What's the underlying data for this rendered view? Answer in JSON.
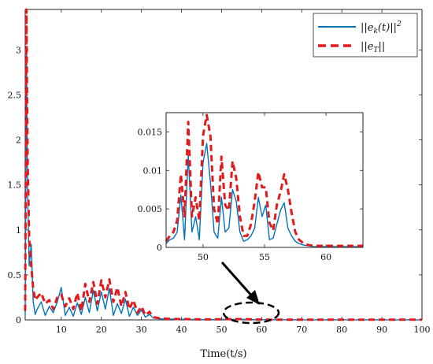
{
  "chart_data": [
    {
      "type": "line",
      "xlabel": "Time(t/s)",
      "ylabel": "",
      "xlim": [
        1,
        100
      ],
      "ylim": [
        0,
        3.45
      ],
      "xticks": [
        10,
        20,
        30,
        40,
        50,
        60,
        70,
        80,
        90,
        100
      ],
      "xtick_labels": [
        "10",
        "20",
        "30",
        "40",
        "50",
        "60",
        "70",
        "80",
        "90",
        "100"
      ],
      "yticks": [
        0,
        0.5,
        1,
        1.5,
        2,
        2.5,
        3
      ],
      "ytick_labels": [
        "0",
        "0.5",
        "1",
        "1.5",
        "2",
        "2.5",
        "3"
      ],
      "legend_position": "top-right",
      "series": [
        {
          "name": "||e_k(t)||^2",
          "color": "#0072BD",
          "style": "solid",
          "x": [
            1,
            1.3,
            1.6,
            2,
            2.5,
            3,
            3.5,
            4,
            5,
            6,
            7,
            8,
            9,
            10,
            11,
            12,
            13,
            14,
            15,
            16,
            17,
            18,
            19,
            20,
            21,
            22,
            23,
            24,
            25,
            26,
            27,
            28,
            29,
            30,
            31,
            32,
            33,
            35,
            38,
            42,
            46,
            50,
            55,
            60,
            70,
            80,
            90,
            100
          ],
          "y": [
            0.05,
            3.0,
            1.4,
            0.6,
            0.84,
            0.2,
            0.06,
            0.12,
            0.2,
            0.05,
            0.15,
            0.08,
            0.2,
            0.36,
            0.05,
            0.14,
            0.04,
            0.19,
            0.06,
            0.25,
            0.08,
            0.33,
            0.1,
            0.31,
            0.12,
            0.35,
            0.05,
            0.18,
            0.07,
            0.23,
            0.04,
            0.14,
            0.05,
            0.11,
            0.03,
            0.06,
            0.02,
            0.01,
            0.008,
            0.005,
            0.003,
            0.005,
            0.006,
            0.002,
            0.001,
            0.001,
            0.001,
            0.001
          ]
        },
        {
          "name": "||e_T||",
          "color": "#E31A1C",
          "style": "dashed",
          "x": [
            1,
            1.3,
            1.6,
            2,
            2.5,
            3,
            3.5,
            4,
            5,
            6,
            7,
            8,
            9,
            10,
            11,
            12,
            13,
            14,
            15,
            16,
            17,
            18,
            19,
            20,
            21,
            22,
            23,
            24,
            25,
            26,
            27,
            28,
            29,
            30,
            31,
            32,
            33,
            35,
            38,
            42,
            46,
            50,
            55,
            60,
            70,
            80,
            90,
            100
          ],
          "y": [
            0.1,
            3.45,
            1.8,
            0.9,
            0.6,
            0.35,
            0.22,
            0.25,
            0.3,
            0.18,
            0.22,
            0.12,
            0.25,
            0.28,
            0.15,
            0.24,
            0.12,
            0.3,
            0.1,
            0.4,
            0.2,
            0.42,
            0.18,
            0.44,
            0.25,
            0.45,
            0.2,
            0.36,
            0.15,
            0.31,
            0.12,
            0.22,
            0.08,
            0.15,
            0.05,
            0.09,
            0.03,
            0.015,
            0.01,
            0.008,
            0.005,
            0.007,
            0.009,
            0.003,
            0.002,
            0.002,
            0.002,
            0.002
          ]
        }
      ]
    },
    {
      "type": "line",
      "inset": true,
      "xlim": [
        47,
        63
      ],
      "ylim": [
        0,
        0.0175
      ],
      "xticks": [
        50,
        55,
        60
      ],
      "xtick_labels": [
        "50",
        "55",
        "60"
      ],
      "yticks": [
        0,
        0.005,
        0.01,
        0.015
      ],
      "ytick_labels": [
        "0",
        "0.005",
        "0.01",
        "0.015"
      ],
      "series": [
        {
          "name": "||e_k(t)||^2",
          "color": "#0072BD",
          "style": "solid",
          "x": [
            47,
            47.3,
            47.6,
            47.9,
            48.2,
            48.5,
            48.8,
            49.1,
            49.4,
            49.7,
            50.0,
            50.3,
            50.6,
            50.9,
            51.2,
            51.5,
            51.8,
            52.1,
            52.4,
            52.7,
            53.0,
            53.3,
            53.6,
            53.9,
            54.2,
            54.5,
            54.8,
            55.1,
            55.4,
            55.7,
            56.0,
            56.3,
            56.6,
            56.9,
            57.2,
            57.5,
            57.8,
            58.2,
            58.6,
            59,
            60,
            61,
            62,
            63
          ],
          "y": [
            0.0005,
            0.001,
            0.0012,
            0.002,
            0.0068,
            0.001,
            0.012,
            0.002,
            0.004,
            0.001,
            0.011,
            0.0135,
            0.0085,
            0.002,
            0.0012,
            0.0065,
            0.002,
            0.0025,
            0.0075,
            0.006,
            0.002,
            0.0008,
            0.001,
            0.0015,
            0.0025,
            0.0065,
            0.004,
            0.0055,
            0.001,
            0.0012,
            0.003,
            0.0048,
            0.0058,
            0.0025,
            0.0015,
            0.0008,
            0.0005,
            0.0003,
            0.0002,
            0.0001,
            0.0001,
            0.0001,
            0.0001,
            0.0001
          ]
        },
        {
          "name": "||e_T||",
          "color": "#E31A1C",
          "style": "dashed",
          "x": [
            47,
            47.3,
            47.6,
            47.9,
            48.2,
            48.5,
            48.8,
            49.1,
            49.4,
            49.7,
            50.0,
            50.3,
            50.6,
            50.9,
            51.2,
            51.5,
            51.8,
            52.1,
            52.4,
            52.7,
            53.0,
            53.3,
            53.6,
            53.9,
            54.2,
            54.5,
            54.8,
            55.1,
            55.4,
            55.7,
            56.0,
            56.3,
            56.6,
            56.9,
            57.2,
            57.5,
            57.8,
            58.2,
            58.6,
            59,
            60,
            61,
            62,
            63
          ],
          "y": [
            0.0008,
            0.0015,
            0.002,
            0.0035,
            0.0095,
            0.004,
            0.0163,
            0.004,
            0.0065,
            0.0035,
            0.0145,
            0.0172,
            0.0145,
            0.005,
            0.003,
            0.0118,
            0.0055,
            0.0048,
            0.0112,
            0.009,
            0.004,
            0.0015,
            0.0015,
            0.003,
            0.006,
            0.0098,
            0.0078,
            0.0078,
            0.0032,
            0.0022,
            0.0055,
            0.0072,
            0.0095,
            0.0075,
            0.0045,
            0.002,
            0.001,
            0.0005,
            0.0003,
            0.0002,
            0.0002,
            0.0002,
            0.0002,
            0.0002
          ]
        }
      ]
    }
  ],
  "legend": [
    {
      "text_main": "||e",
      "sub": "k",
      "text_tail": "(t)||",
      "sup": "2",
      "color": "#0072BD",
      "style": "solid"
    },
    {
      "text_main": "||e",
      "sub": "T",
      "text_tail": "||",
      "sup": "",
      "color": "#E31A1C",
      "style": "dashed"
    }
  ]
}
